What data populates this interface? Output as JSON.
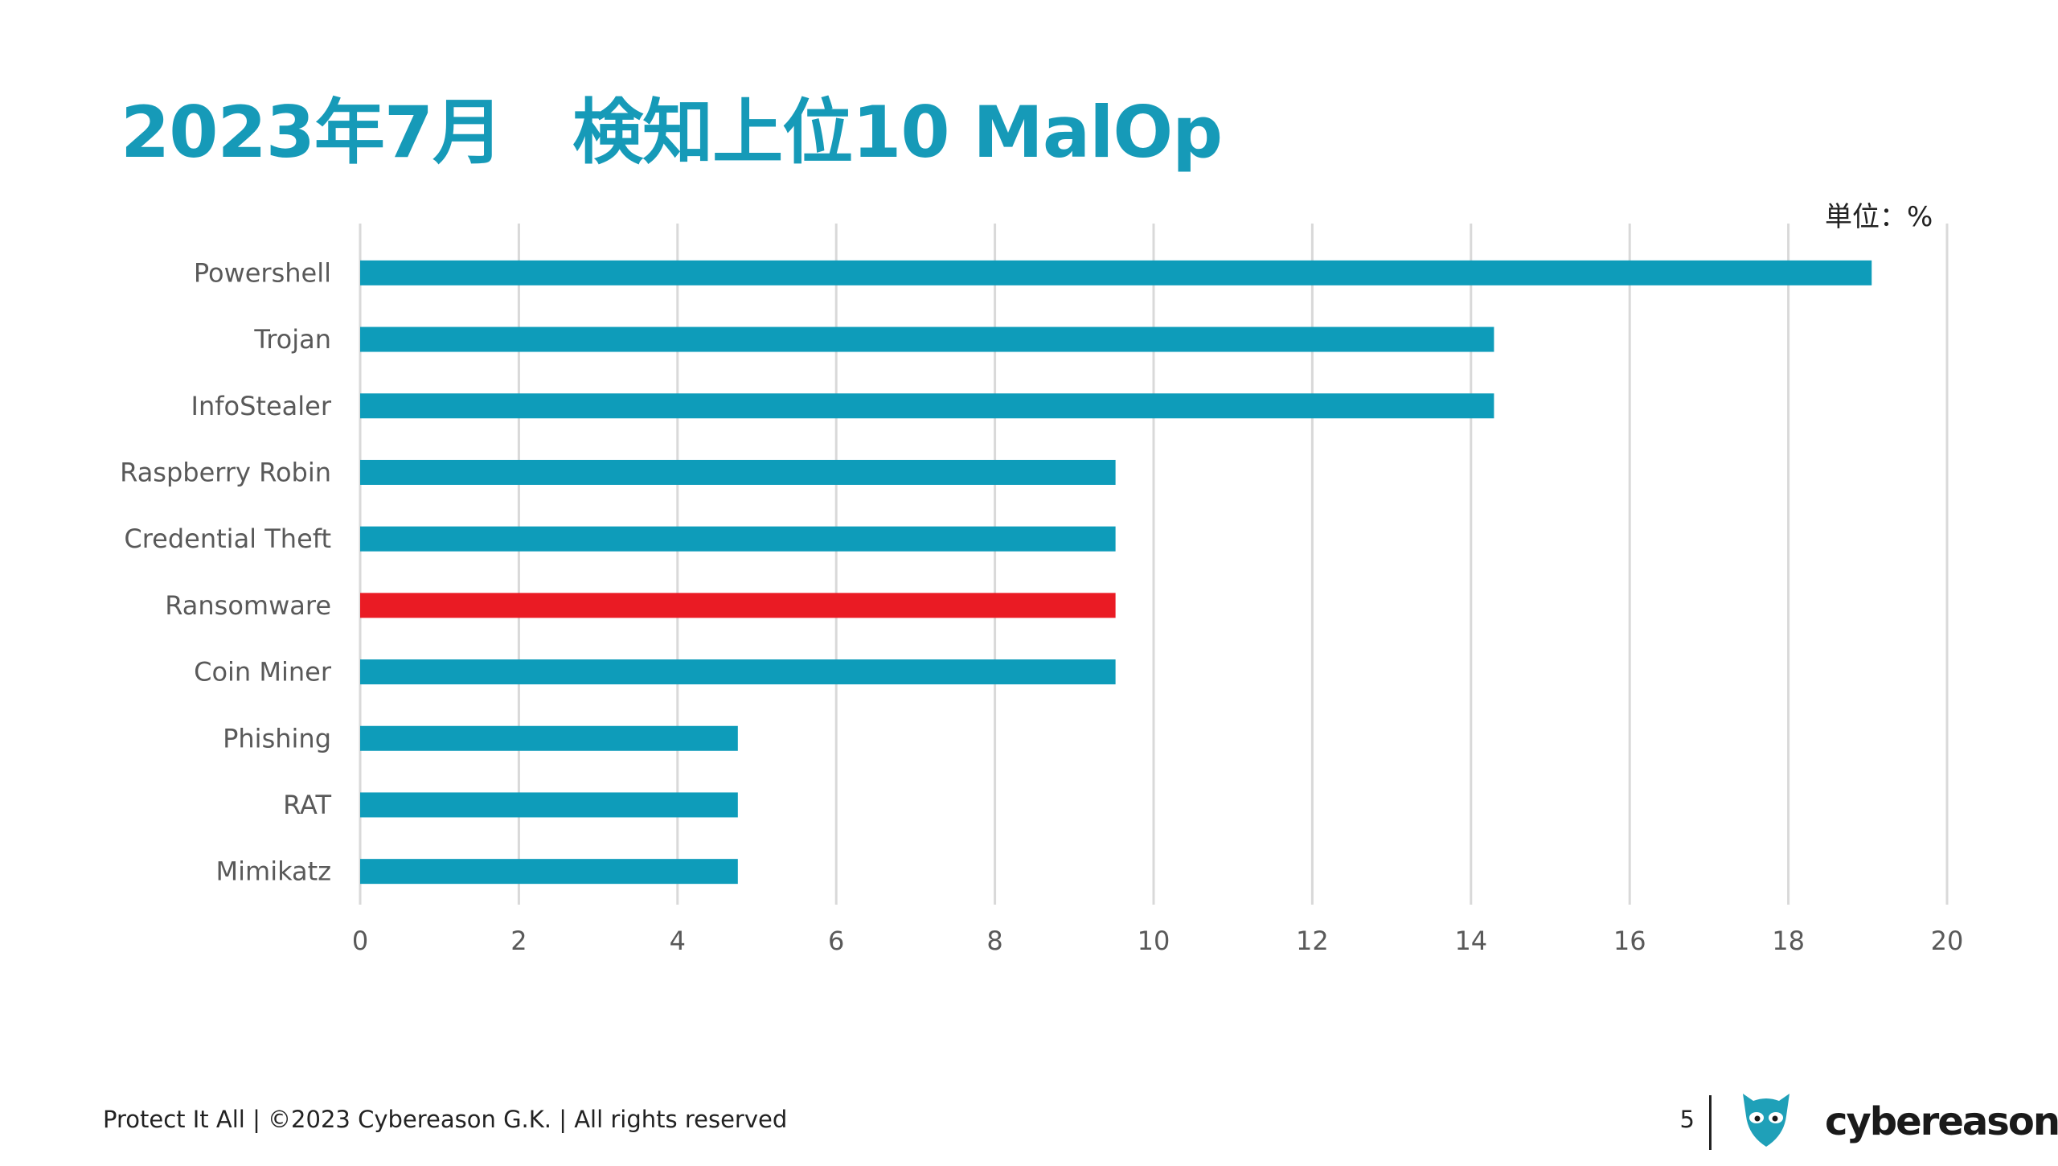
{
  "slide": {
    "title": "2023年7月　検知上位10 MalOp",
    "unit_label": "単位：%",
    "footer_text": "Protect It All | ©2023 Cybereason G.K. | All rights reserved",
    "page_number": "5",
    "brand_name": "cybereason",
    "brand_icon": "owl-logo-icon"
  },
  "colors": {
    "title": "#169ab8",
    "bar_default": "#0e9cba",
    "bar_highlight": "#ea1b24",
    "gridline": "#d9d9d9",
    "axis_text": "#595959",
    "brand_icon": "#1fa0b8"
  },
  "chart_data": {
    "type": "bar",
    "orientation": "horizontal",
    "title": "",
    "xlabel": "",
    "ylabel": "",
    "categories": [
      "Powershell",
      "Trojan",
      "InfoStealer",
      "Raspberry Robin",
      "Credential Theft",
      "Ransomware",
      "Coin Miner",
      "Phishing",
      "RAT",
      "Mimikatz"
    ],
    "values": [
      19.05,
      14.29,
      14.29,
      9.52,
      9.52,
      9.52,
      9.52,
      4.76,
      4.76,
      4.76
    ],
    "highlight": [
      "Ransomware"
    ],
    "xlim": [
      0,
      20
    ],
    "xticks": [
      "0",
      "2",
      "4",
      "6",
      "8",
      "10",
      "12",
      "14",
      "16",
      "18",
      "20"
    ],
    "grid": "vertical",
    "legend": "none"
  }
}
